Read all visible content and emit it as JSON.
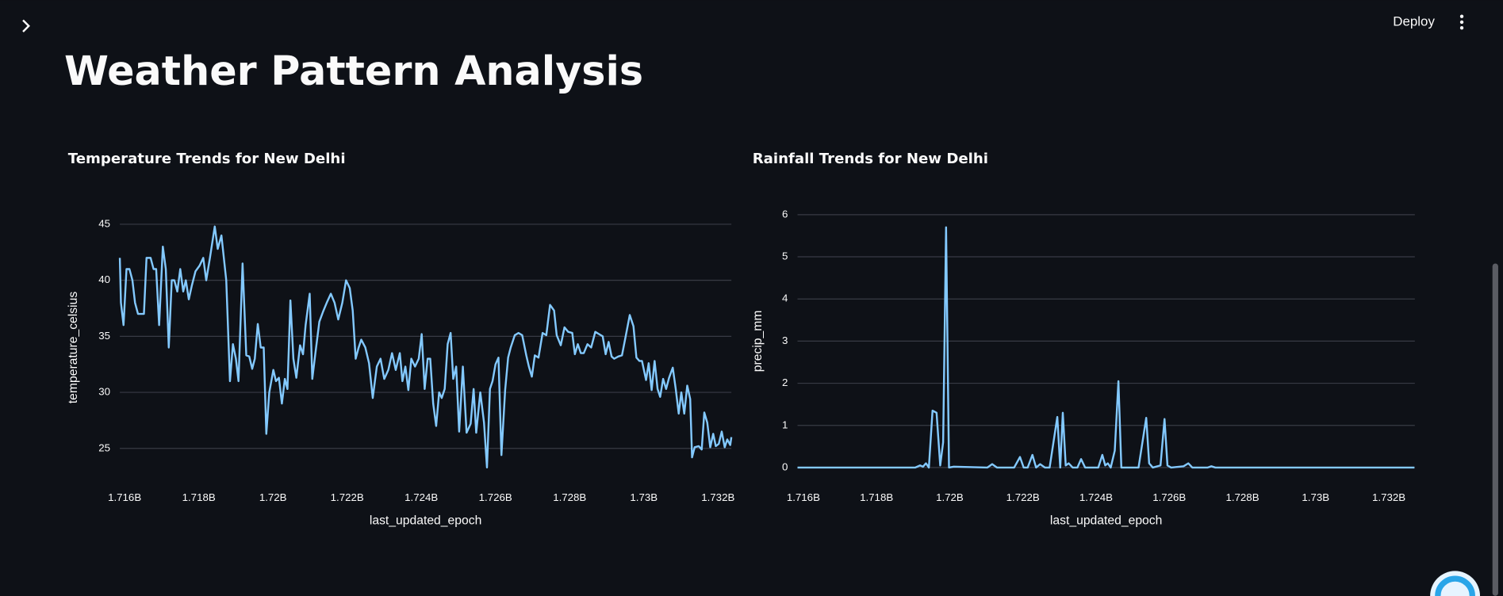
{
  "page": {
    "deploy": "Deploy",
    "title": "Weather Pattern Analysis"
  },
  "chart_data": [
    {
      "type": "line",
      "title": "Temperature Trends for New Delhi",
      "x_label": "last_updated_epoch",
      "y_label": "temperature_celsius",
      "color": "#83c9ff",
      "grid": true,
      "xlim": [
        1715870000,
        1732360000
      ],
      "ylim": [
        23,
        45
      ],
      "xticks": [
        {
          "value": 1716000000,
          "label": "1.716B"
        },
        {
          "value": 1718000000,
          "label": "1.718B"
        },
        {
          "value": 1720000000,
          "label": "1.72B"
        },
        {
          "value": 1722000000,
          "label": "1.722B"
        },
        {
          "value": 1724000000,
          "label": "1.724B"
        },
        {
          "value": 1726000000,
          "label": "1.726B"
        },
        {
          "value": 1728000000,
          "label": "1.728B"
        },
        {
          "value": 1730000000,
          "label": "1.73B"
        },
        {
          "value": 1732000000,
          "label": "1.732B"
        }
      ],
      "yticks": [
        25,
        30,
        35,
        40,
        45
      ],
      "x": [
        1715870000,
        1715900000,
        1715970000,
        1716050000,
        1716130000,
        1716210000,
        1716280000,
        1716360000,
        1716520000,
        1716590000,
        1716700000,
        1716780000,
        1716850000,
        1716930000,
        1717030000,
        1717110000,
        1717190000,
        1717270000,
        1717340000,
        1717420000,
        1717500000,
        1717580000,
        1717650000,
        1717730000,
        1717810000,
        1717910000,
        1718020000,
        1718120000,
        1718200000,
        1718300000,
        1718430000,
        1718510000,
        1718610000,
        1718740000,
        1718840000,
        1718920000,
        1719000000,
        1719070000,
        1719180000,
        1719280000,
        1719360000,
        1719440000,
        1719510000,
        1719590000,
        1719670000,
        1719750000,
        1719820000,
        1719900000,
        1720010000,
        1720080000,
        1720160000,
        1720240000,
        1720320000,
        1720390000,
        1720470000,
        1720550000,
        1720630000,
        1720730000,
        1720810000,
        1720880000,
        1720990000,
        1721060000,
        1721140000,
        1721250000,
        1721350000,
        1721450000,
        1721560000,
        1721660000,
        1721760000,
        1721870000,
        1721970000,
        1722070000,
        1722150000,
        1722230000,
        1722310000,
        1722380000,
        1722490000,
        1722590000,
        1722690000,
        1722800000,
        1722900000,
        1723000000,
        1723110000,
        1723210000,
        1723310000,
        1723420000,
        1723490000,
        1723570000,
        1723650000,
        1723730000,
        1723830000,
        1723930000,
        1724010000,
        1724090000,
        1724170000,
        1724240000,
        1724320000,
        1724400000,
        1724480000,
        1724550000,
        1724630000,
        1724710000,
        1724790000,
        1724860000,
        1724940000,
        1725020000,
        1725120000,
        1725220000,
        1725330000,
        1725410000,
        1725480000,
        1725590000,
        1725690000,
        1725770000,
        1725850000,
        1725920000,
        1726000000,
        1726080000,
        1726160000,
        1726260000,
        1726340000,
        1726410000,
        1726520000,
        1726620000,
        1726720000,
        1726830000,
        1726900000,
        1726980000,
        1727060000,
        1727160000,
        1727270000,
        1727370000,
        1727470000,
        1727580000,
        1727650000,
        1727760000,
        1727860000,
        1727960000,
        1728070000,
        1728140000,
        1728220000,
        1728300000,
        1728380000,
        1728480000,
        1728580000,
        1728690000,
        1728790000,
        1728890000,
        1728970000,
        1729050000,
        1729130000,
        1729200000,
        1729310000,
        1729410000,
        1729510000,
        1729620000,
        1729720000,
        1729800000,
        1729880000,
        1729950000,
        1730060000,
        1730130000,
        1730210000,
        1730290000,
        1730370000,
        1730440000,
        1730520000,
        1730600000,
        1730680000,
        1730780000,
        1730860000,
        1730940000,
        1731010000,
        1731090000,
        1731170000,
        1731250000,
        1731300000,
        1731370000,
        1731480000,
        1731560000,
        1731630000,
        1731710000,
        1731790000,
        1731870000,
        1731940000,
        1732020000,
        1732100000,
        1732180000,
        1732250000,
        1732330000,
        1732360000
      ],
      "values": [
        42,
        38,
        36,
        41,
        41,
        40,
        38,
        37,
        37,
        42,
        42,
        41,
        41,
        36,
        43,
        41,
        34,
        40,
        40,
        39,
        41,
        39,
        40,
        38.3,
        39.5,
        40.8,
        41.3,
        42,
        40,
        42,
        44.8,
        42.8,
        44,
        40,
        31,
        34.3,
        33,
        31,
        41.5,
        33.3,
        33.2,
        32.1,
        33,
        36.1,
        34,
        34,
        26.3,
        30,
        32,
        31,
        31.3,
        29,
        31.2,
        30.3,
        38.2,
        33,
        31.3,
        34.2,
        33.4,
        36,
        38.8,
        31.2,
        33.4,
        36.3,
        37.2,
        38,
        38.8,
        38,
        36.5,
        38,
        40,
        39.3,
        37.3,
        33,
        34,
        34.7,
        34,
        32.6,
        29.5,
        32.3,
        33,
        31.2,
        32,
        33.5,
        32,
        33.5,
        31,
        32.3,
        30.2,
        33,
        32.3,
        33,
        35.2,
        30.3,
        33,
        33,
        29,
        27,
        30,
        29.5,
        30.3,
        34.3,
        35.3,
        31.2,
        32.3,
        26.5,
        32.3,
        26.4,
        27.2,
        30.3,
        26.4,
        30,
        27.3,
        23.3,
        30.3,
        31,
        32.5,
        33.1,
        24.4,
        30.2,
        33.1,
        34,
        35.1,
        35.3,
        35.1,
        33.3,
        32.3,
        31.4,
        33.3,
        33.1,
        35.3,
        35.1,
        37.8,
        37.3,
        35.1,
        34.2,
        35.8,
        35.4,
        35.3,
        33.4,
        34.3,
        33.5,
        33.5,
        34.3,
        34,
        35.4,
        35.2,
        35,
        33.4,
        34.5,
        33.2,
        33,
        33.2,
        33.3,
        35,
        36.9,
        35.9,
        33.1,
        32.8,
        32.8,
        31.1,
        32.6,
        30.2,
        32.8,
        30.3,
        29.6,
        31.2,
        30.3,
        31.3,
        32.2,
        30.3,
        28.1,
        30,
        28.1,
        30.6,
        29.4,
        24.2,
        25.1,
        25.2,
        24.9,
        28.2,
        27.3,
        25.1,
        26.3,
        25.2,
        25.4,
        26.5,
        25.1,
        25.8,
        25.3,
        26
      ]
    },
    {
      "type": "line",
      "title": "Rainfall Trends for New Delhi",
      "x_label": "last_updated_epoch",
      "y_label": "precip_mm",
      "color": "#83c9ff",
      "grid": true,
      "xlim": [
        1715840000,
        1732710000
      ],
      "ylim": [
        0,
        6
      ],
      "xticks": [
        {
          "value": 1716000000,
          "label": "1.716B"
        },
        {
          "value": 1718000000,
          "label": "1.718B"
        },
        {
          "value": 1720000000,
          "label": "1.72B"
        },
        {
          "value": 1722000000,
          "label": "1.722B"
        },
        {
          "value": 1724000000,
          "label": "1.724B"
        },
        {
          "value": 1726000000,
          "label": "1.726B"
        },
        {
          "value": 1728000000,
          "label": "1.728B"
        },
        {
          "value": 1730000000,
          "label": "1.73B"
        },
        {
          "value": 1732000000,
          "label": "1.732B"
        }
      ],
      "yticks": [
        0,
        1,
        2,
        3,
        4,
        5,
        6
      ],
      "x": [
        1715840000,
        1719060000,
        1719190000,
        1719270000,
        1719350000,
        1719430000,
        1719530000,
        1719640000,
        1719740000,
        1719820000,
        1719900000,
        1719980000,
        1720110000,
        1721030000,
        1721160000,
        1721290000,
        1721760000,
        1721920000,
        1722020000,
        1722130000,
        1722260000,
        1722360000,
        1722470000,
        1722600000,
        1722730000,
        1722940000,
        1723020000,
        1723090000,
        1723170000,
        1723250000,
        1723360000,
        1723490000,
        1723590000,
        1723700000,
        1724060000,
        1724170000,
        1724250000,
        1724320000,
        1724400000,
        1724510000,
        1724610000,
        1724690000,
        1725160000,
        1725370000,
        1725450000,
        1725550000,
        1725760000,
        1725870000,
        1725950000,
        1726050000,
        1726390000,
        1726520000,
        1726630000,
        1727050000,
        1727150000,
        1727260000,
        1732700000
      ],
      "values": [
        0,
        0,
        0.05,
        0.02,
        0.1,
        0,
        1.35,
        1.3,
        0.05,
        0.6,
        5.7,
        0,
        0.02,
        0,
        0.08,
        0,
        0,
        0.25,
        0,
        0,
        0.3,
        0,
        0.08,
        0,
        0,
        1.2,
        0,
        1.3,
        0.05,
        0.1,
        0,
        0,
        0.2,
        0,
        0,
        0.3,
        0.05,
        0.1,
        0,
        0.4,
        2.05,
        0,
        0,
        1.18,
        0.1,
        0,
        0.05,
        1.15,
        0.05,
        0,
        0.03,
        0.1,
        0,
        0,
        0.03,
        0,
        0
      ]
    }
  ]
}
